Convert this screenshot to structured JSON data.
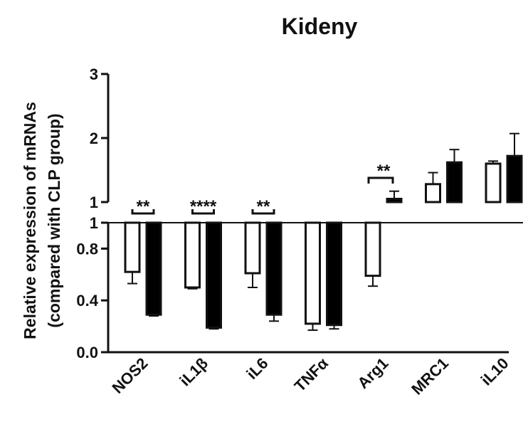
{
  "chart_data": {
    "type": "bar",
    "title": "Kideny",
    "ylabel_lines": [
      "Relative expression of mRNAs",
      "(compared with CLP group)"
    ],
    "xlabel": "",
    "categories": [
      "NOS2",
      "iL1β",
      "iL6",
      "TNFα",
      "Arg1",
      "MRC1",
      "iL10"
    ],
    "series": [
      {
        "fill": "#ffffff",
        "values": [
          0.62,
          0.5,
          0.61,
          0.22,
          0.59,
          1.28,
          1.6
        ],
        "errors": [
          0.09,
          0.01,
          0.11,
          0.05,
          0.08,
          0.18,
          0.04
        ]
      },
      {
        "fill": "#000000",
        "values": [
          0.29,
          0.19,
          0.29,
          0.21,
          1.05,
          1.62,
          1.72
        ],
        "errors": [
          0.01,
          0.01,
          0.05,
          0.03,
          0.12,
          0.2,
          0.35
        ]
      }
    ],
    "axis": {
      "lower_range": [
        0.0,
        1.0
      ],
      "lower_ticks": [
        "0.0",
        "0.4",
        "0.8",
        "1"
      ],
      "upper_range": [
        1,
        3
      ],
      "upper_ticks": [
        "1",
        "2",
        "3"
      ],
      "broken_axis": true,
      "reference_line_at": 1
    },
    "significance": [
      {
        "category": "NOS2",
        "label": "**"
      },
      {
        "category": "iL1β",
        "label": "****"
      },
      {
        "category": "iL6",
        "label": "**"
      },
      {
        "category": "Arg1",
        "label": "**"
      }
    ]
  }
}
